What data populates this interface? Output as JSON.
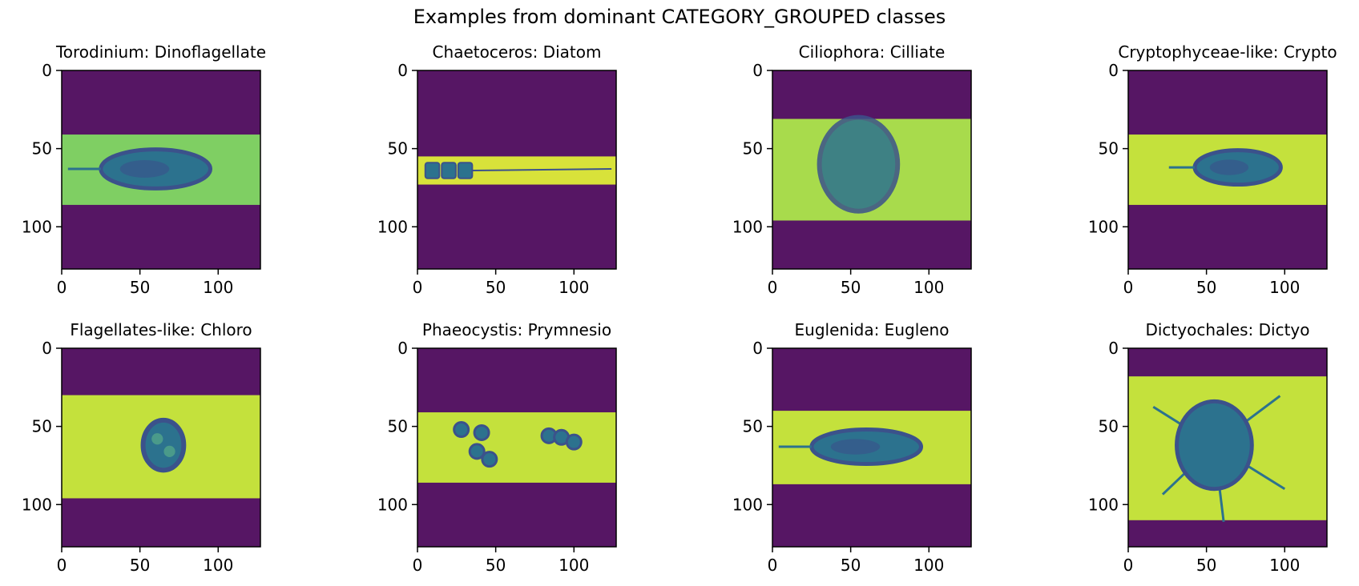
{
  "figure": {
    "title": "Examples from dominant CATEGORY_GROUPED classes"
  },
  "chart_data": {
    "type": "heatmap",
    "colormap": "viridis",
    "colors": {
      "background_band": "#561664",
      "cell_fill": "#c4e13c",
      "cell_fill_dark_variant": "#7fcf63",
      "organism_outline": "#3b528b",
      "organism_inner": "#2c728e"
    },
    "panels": [
      {
        "title": "Torodinium: Dinoflagellate",
        "xticks": [
          "0",
          "50",
          "100"
        ],
        "yticks": [
          "0",
          "50",
          "100"
        ],
        "xlim": [
          0,
          127
        ],
        "ylim": [
          127,
          0
        ],
        "band_rows": [
          41,
          86
        ],
        "cell_color": "#7fcf63",
        "shape": "spindle",
        "object_center": [
          60,
          63
        ],
        "object_size": [
          70,
          25
        ]
      },
      {
        "title": "Chaetoceros: Diatom",
        "xticks": [
          "0",
          "50",
          "100"
        ],
        "yticks": [
          "0",
          "50",
          "100"
        ],
        "xlim": [
          0,
          127
        ],
        "ylim": [
          127,
          0
        ],
        "band_rows": [
          55,
          73
        ],
        "cell_color": "#d8e23a",
        "shape": "chain",
        "object_center": [
          20,
          64
        ],
        "object_size": [
          30,
          10
        ]
      },
      {
        "title": "Ciliophora: Cilliate",
        "xticks": [
          "0",
          "50",
          "100"
        ],
        "yticks": [
          "0",
          "50",
          "100"
        ],
        "xlim": [
          0,
          127
        ],
        "ylim": [
          127,
          0
        ],
        "band_rows": [
          31,
          96
        ],
        "cell_color": "#a8db4c",
        "shape": "oval",
        "object_center": [
          55,
          60
        ],
        "object_size": [
          50,
          60
        ]
      },
      {
        "title": "Cryptophyceae-like: Crypto",
        "xticks": [
          "0",
          "50",
          "100"
        ],
        "yticks": [
          "0",
          "50",
          "100"
        ],
        "xlim": [
          0,
          127
        ],
        "ylim": [
          127,
          0
        ],
        "band_rows": [
          41,
          86
        ],
        "cell_color": "#c4e13c",
        "shape": "lens",
        "object_center": [
          70,
          62
        ],
        "object_size": [
          55,
          22
        ]
      },
      {
        "title": "Flagellates-like: Chloro",
        "xticks": [
          "0",
          "50",
          "100"
        ],
        "yticks": [
          "0",
          "50",
          "100"
        ],
        "xlim": [
          0,
          127
        ],
        "ylim": [
          127,
          0
        ],
        "band_rows": [
          30,
          96
        ],
        "cell_color": "#c4e13c",
        "shape": "round",
        "object_center": [
          65,
          62
        ],
        "object_size": [
          26,
          32
        ]
      },
      {
        "title": "Phaeocystis: Prymnesio",
        "xticks": [
          "0",
          "50",
          "100"
        ],
        "yticks": [
          "0",
          "50",
          "100"
        ],
        "xlim": [
          0,
          127
        ],
        "ylim": [
          127,
          0
        ],
        "band_rows": [
          41,
          86
        ],
        "cell_color": "#c4e13c",
        "shape": "cells",
        "object_center": [
          60,
          60
        ],
        "object_size": [
          90,
          30
        ]
      },
      {
        "title": "Euglenida: Eugleno",
        "xticks": [
          "0",
          "50",
          "100"
        ],
        "yticks": [
          "0",
          "50",
          "100"
        ],
        "xlim": [
          0,
          127
        ],
        "ylim": [
          127,
          0
        ],
        "band_rows": [
          40,
          87
        ],
        "cell_color": "#c4e13c",
        "shape": "spindle",
        "object_center": [
          60,
          63
        ],
        "object_size": [
          70,
          22
        ]
      },
      {
        "title": "Dictyochales: Dictyo",
        "xticks": [
          "0",
          "50",
          "100"
        ],
        "yticks": [
          "0",
          "50",
          "100"
        ],
        "xlim": [
          0,
          127
        ],
        "ylim": [
          127,
          0
        ],
        "band_rows": [
          18,
          110
        ],
        "cell_color": "#c4e13c",
        "shape": "star",
        "object_center": [
          55,
          62
        ],
        "object_size": [
          60,
          70
        ]
      }
    ]
  }
}
